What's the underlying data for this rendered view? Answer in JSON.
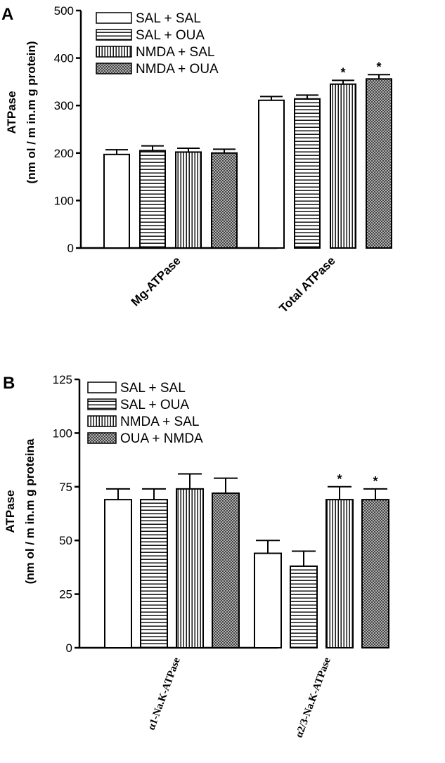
{
  "chart_data": [
    {
      "type": "bar",
      "panel_label": "A",
      "ylabel": "ATPase",
      "ylabel_unit": "(nm ol / m in.m g protein)",
      "ylim": [
        0,
        500
      ],
      "yticks": [
        0,
        100,
        200,
        300,
        400,
        500
      ],
      "categories": [
        "Mg-ATPase",
        "Total ATPase"
      ],
      "legend_position": "top-left",
      "series": [
        {
          "name": "SAL + SAL",
          "pattern": "white",
          "values": [
            197,
            311
          ],
          "errors": [
            10,
            8
          ],
          "significant": [
            false,
            false
          ]
        },
        {
          "name": "SAL + OUA",
          "pattern": "horizontal",
          "values": [
            205,
            314
          ],
          "errors": [
            10,
            8
          ],
          "significant": [
            false,
            false
          ]
        },
        {
          "name": "NMDA + SAL",
          "pattern": "vertical",
          "values": [
            202,
            345
          ],
          "errors": [
            8,
            8
          ],
          "significant": [
            false,
            true
          ]
        },
        {
          "name": "NMDA + OUA",
          "pattern": "crosshatch",
          "values": [
            200,
            356
          ],
          "errors": [
            8,
            9
          ],
          "significant": [
            false,
            true
          ]
        }
      ],
      "significance_marker": "*"
    },
    {
      "type": "bar",
      "panel_label": "B",
      "ylabel": "ATPase",
      "ylabel_unit": "(nm ol / m in.m g proteina",
      "ylim": [
        0,
        125
      ],
      "yticks": [
        0,
        25,
        50,
        75,
        100,
        125
      ],
      "categories": [
        "α1-Na.K-ATPase",
        "α2/3-Na.K-ATPase"
      ],
      "legend_position": "top-left",
      "series": [
        {
          "name": "SAL + SAL",
          "pattern": "white",
          "values": [
            69,
            44
          ],
          "errors": [
            5,
            6
          ],
          "significant": [
            false,
            false
          ]
        },
        {
          "name": "SAL + OUA",
          "pattern": "horizontal",
          "values": [
            69,
            38
          ],
          "errors": [
            5,
            7
          ],
          "significant": [
            false,
            false
          ]
        },
        {
          "name": "NMDA + SAL",
          "pattern": "vertical",
          "values": [
            74,
            69
          ],
          "errors": [
            7,
            6
          ],
          "significant": [
            false,
            true
          ]
        },
        {
          "name": "OUA + NMDA",
          "pattern": "crosshatch",
          "values": [
            72,
            69
          ],
          "errors": [
            7,
            5
          ],
          "significant": [
            false,
            true
          ]
        }
      ],
      "significance_marker": "*"
    }
  ]
}
